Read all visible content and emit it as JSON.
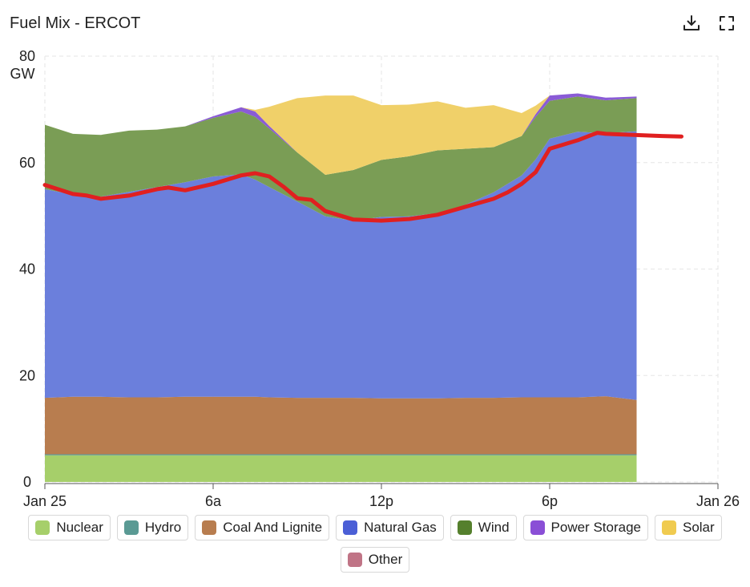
{
  "header": {
    "title": "Fuel Mix - ERCOT",
    "download_icon": "download-icon",
    "fullscreen_icon": "fullscreen-icon"
  },
  "chart_data": {
    "type": "area",
    "stacked": true,
    "title": "Fuel Mix - ERCOT",
    "ylabel": "GW",
    "ylim": [
      0,
      80
    ],
    "xlim": [
      0,
      24
    ],
    "y_ticks": [
      "0",
      "20",
      "40",
      "60",
      "80"
    ],
    "x_ticks": [
      {
        "hour": 0,
        "label": "Jan 25"
      },
      {
        "hour": 6,
        "label": "6a"
      },
      {
        "hour": 12,
        "label": "12p"
      },
      {
        "hour": 18,
        "label": "6p"
      },
      {
        "hour": 24,
        "label": "Jan 26"
      }
    ],
    "grid": true,
    "legend_position": "bottom",
    "x": [
      0,
      1,
      2,
      3,
      4,
      5,
      6,
      7,
      7.5,
      8,
      9,
      10,
      11,
      12,
      13,
      14,
      15,
      16,
      17,
      17.5,
      18,
      19,
      20,
      21.1
    ],
    "series": [
      {
        "name": "Nuclear",
        "color": "#a6cf6a",
        "values": [
          5,
          5,
          5,
          5,
          5,
          5,
          5,
          5,
          5,
          5,
          5,
          5,
          5,
          5,
          5,
          5,
          5,
          5,
          5,
          5,
          5,
          5,
          5,
          5
        ]
      },
      {
        "name": "Hydro",
        "color": "#5a9a94",
        "values": [
          0.2,
          0.2,
          0.2,
          0.2,
          0.2,
          0.2,
          0.2,
          0.2,
          0.2,
          0.2,
          0.2,
          0.2,
          0.2,
          0.2,
          0.2,
          0.2,
          0.2,
          0.2,
          0.2,
          0.2,
          0.2,
          0.2,
          0.2,
          0.2
        ]
      },
      {
        "name": "Coal And Lignite",
        "color": "#b87d4f",
        "values": [
          10.6,
          10.8,
          10.8,
          10.7,
          10.7,
          10.8,
          10.8,
          10.8,
          10.8,
          10.7,
          10.6,
          10.6,
          10.6,
          10.5,
          10.5,
          10.5,
          10.6,
          10.6,
          10.7,
          10.7,
          10.7,
          10.7,
          10.9,
          10.2
        ]
      },
      {
        "name": "Natural Gas",
        "color": "#6b7fdc",
        "values": [
          39.2,
          38.0,
          37.6,
          38.6,
          39.5,
          40.3,
          41.4,
          41.8,
          40.8,
          39.5,
          36.9,
          34.1,
          33.3,
          34.1,
          34.2,
          34.8,
          36.3,
          38.6,
          41.7,
          44.7,
          48.6,
          49.9,
          49.4,
          50.5
        ]
      },
      {
        "name": "Wind",
        "color": "#7a9d55",
        "values": [
          12.1,
          11.4,
          11.6,
          11.5,
          10.8,
          10.5,
          11.0,
          11.8,
          11.8,
          11.0,
          9.2,
          7.8,
          9.5,
          10.7,
          11.3,
          11.8,
          10.5,
          8.5,
          7.4,
          8.0,
          7.1,
          6.6,
          6.2,
          6.2
        ]
      },
      {
        "name": "Power Storage",
        "color": "#8a5bd6",
        "values": [
          0,
          0,
          0,
          0,
          0,
          0,
          0.3,
          0.8,
          1.0,
          0.5,
          0,
          0,
          0,
          0,
          0,
          0,
          0,
          0,
          0,
          0.5,
          1.0,
          0.6,
          0.5,
          0.3
        ]
      },
      {
        "name": "Solar",
        "color": "#f0d069",
        "values": [
          0,
          0,
          0,
          0,
          0,
          0,
          0,
          0,
          0.3,
          3.6,
          10.2,
          14.9,
          14.0,
          10.3,
          9.7,
          9.2,
          7.7,
          7.9,
          4.3,
          1.6,
          0,
          0,
          0,
          0
        ]
      },
      {
        "name": "Other",
        "color": "#c07486",
        "values": [
          0,
          0,
          0,
          0,
          0,
          0,
          0,
          0,
          0,
          0,
          0,
          0,
          0,
          0,
          0,
          0,
          0,
          0,
          0,
          0,
          0,
          0,
          0,
          0
        ]
      }
    ],
    "overlay_line": {
      "color": "#e02020",
      "x": [
        0,
        1,
        1.5,
        2,
        3,
        4,
        4.4,
        5,
        6,
        7,
        7.5,
        8,
        8.5,
        9,
        9.5,
        10,
        11,
        12,
        13,
        14,
        15,
        16,
        16.5,
        17,
        17.5,
        18,
        19,
        19.5,
        19.7,
        20,
        21,
        22,
        22.7
      ],
      "y": [
        55.8,
        54.1,
        53.8,
        53.2,
        53.8,
        55.0,
        55.3,
        54.8,
        56.0,
        57.6,
        58.0,
        57.4,
        55.5,
        53.3,
        53.0,
        50.9,
        49.3,
        49.1,
        49.4,
        50.2,
        51.7,
        53.2,
        54.4,
        56.0,
        58.2,
        62.6,
        64.2,
        65.2,
        65.6,
        65.4,
        65.2,
        65.0,
        64.9
      ]
    }
  },
  "legend": {
    "items": [
      {
        "label": "Nuclear",
        "color": "#a6cf6a"
      },
      {
        "label": "Hydro",
        "color": "#5a9a94"
      },
      {
        "label": "Coal And Lignite",
        "color": "#b87d4f"
      },
      {
        "label": "Natural Gas",
        "color": "#4b5fd6"
      },
      {
        "label": "Wind",
        "color": "#55802d"
      },
      {
        "label": "Power Storage",
        "color": "#8a4fd6"
      },
      {
        "label": "Solar",
        "color": "#f0cb50"
      },
      {
        "label": "Other",
        "color": "#c07486"
      }
    ]
  }
}
